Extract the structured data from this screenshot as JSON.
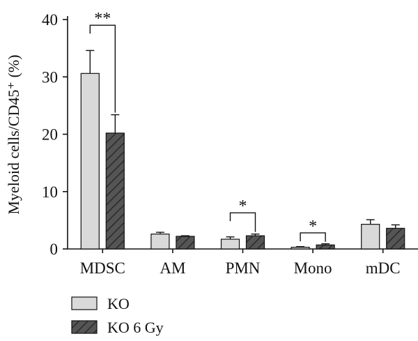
{
  "chart_data": {
    "type": "bar",
    "ylabel": "Myeloid cells/CD45⁺ (%)",
    "ylim": [
      0,
      40
    ],
    "yticks": [
      0,
      10,
      20,
      30,
      40
    ],
    "categories": [
      "MDSC",
      "AM",
      "PMN",
      "Mono",
      "mDC"
    ],
    "series": [
      {
        "name": "KO",
        "values": [
          30.6,
          2.6,
          1.7,
          0.3,
          4.3
        ],
        "errors": [
          4.0,
          0.3,
          0.4,
          0.1,
          0.8
        ],
        "fill": "#d9d9d9",
        "pattern": "solid"
      },
      {
        "name": "KO 6 Gy",
        "values": [
          20.2,
          2.2,
          2.3,
          0.7,
          3.6
        ],
        "errors": [
          3.2,
          0.1,
          0.3,
          0.2,
          0.6
        ],
        "fill": "#555555",
        "pattern": "hatched"
      }
    ],
    "significance": [
      {
        "category": "MDSC",
        "label": "**",
        "bracket_y": 39.0
      },
      {
        "category": "PMN",
        "label": "*",
        "bracket_y": 6.3
      },
      {
        "category": "Mono",
        "label": "*",
        "bracket_y": 2.8
      }
    ],
    "legend": {
      "placement": "bottom-left",
      "entries": [
        "KO",
        "KO 6 Gy"
      ]
    },
    "grid": false
  }
}
